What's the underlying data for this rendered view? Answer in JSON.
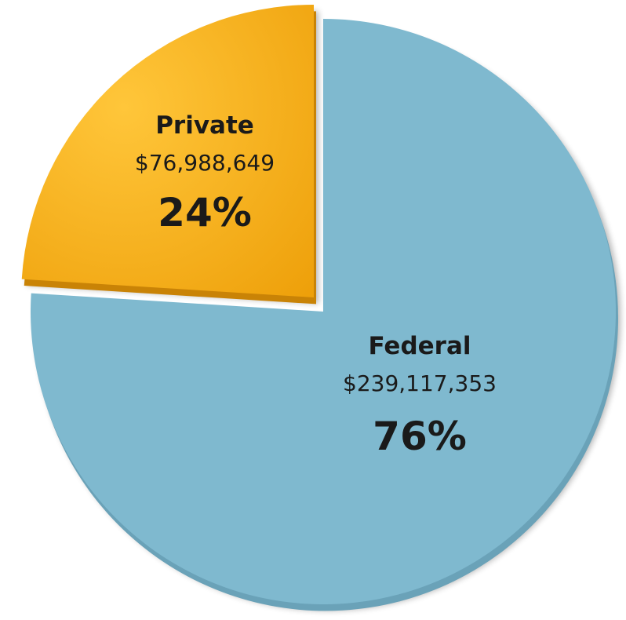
{
  "chart_data": {
    "type": "pie",
    "title": "",
    "slices": [
      {
        "label": "Federal",
        "value_text": "$239,117,353",
        "percent_text": "76%",
        "value": 239117353,
        "percent": 76,
        "color": "#7fb9cf",
        "exploded": false
      },
      {
        "label": "Private",
        "value_text": "$76,988,649",
        "percent_text": "24%",
        "value": 76988649,
        "percent": 24,
        "color": "#f5ad14",
        "exploded": true
      }
    ],
    "legend": "none",
    "grid": false
  }
}
